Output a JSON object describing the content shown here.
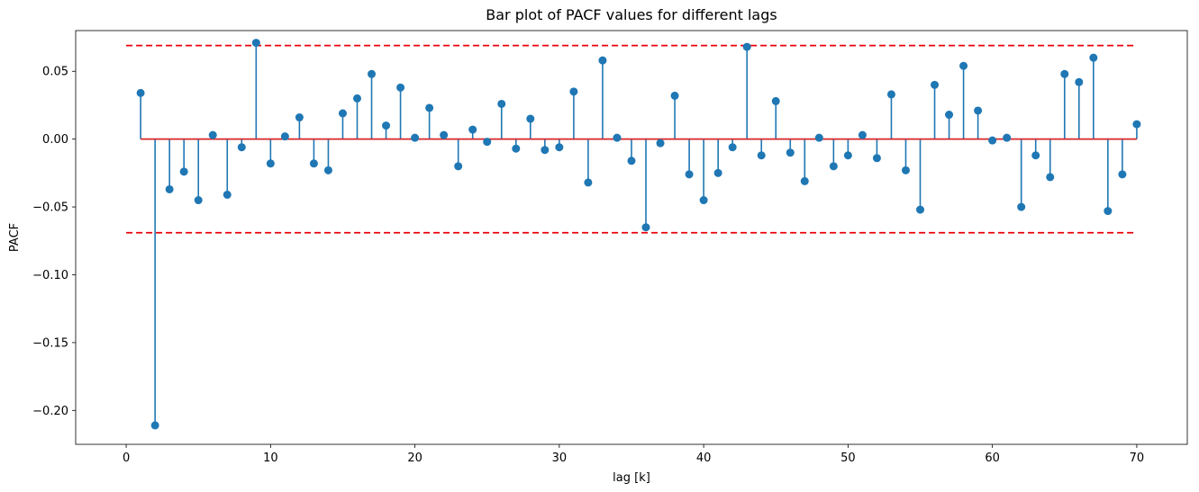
{
  "chart_data": {
    "type": "stem",
    "title": "Bar plot of PACF values for different lags",
    "xlabel": "lag [k]",
    "ylabel": "PACF",
    "xlim": [
      -3.5,
      73.5
    ],
    "ylim": [
      -0.225,
      0.08
    ],
    "x_ticks": [
      0,
      10,
      20,
      30,
      40,
      50,
      60,
      70
    ],
    "x_tick_labels": [
      "0",
      "10",
      "20",
      "30",
      "40",
      "50",
      "60",
      "70"
    ],
    "y_ticks": [
      0.05,
      0.0,
      -0.05,
      -0.1,
      -0.15,
      -0.2
    ],
    "y_tick_labels": [
      "0.05",
      "0.00",
      "−0.05",
      "−0.10",
      "−0.15",
      "−0.20"
    ],
    "grid": false,
    "series": [
      {
        "x": [
          1,
          2,
          3,
          4,
          5,
          6,
          7,
          8,
          9,
          10,
          11,
          12,
          13,
          14,
          15,
          16,
          17,
          18,
          19,
          20,
          21,
          22,
          23,
          24,
          25,
          26,
          27,
          28,
          29,
          30,
          31,
          32,
          33,
          34,
          35,
          36,
          37,
          38,
          39,
          40,
          41,
          42,
          43,
          44,
          45,
          46,
          47,
          48,
          49,
          50,
          51,
          52,
          53,
          54,
          55,
          56,
          57,
          58,
          59,
          60,
          61,
          62,
          63,
          64,
          65,
          66,
          67,
          68,
          69,
          70
        ],
        "values": [
          0.034,
          -0.211,
          -0.037,
          -0.024,
          -0.045,
          0.003,
          -0.041,
          -0.006,
          0.071,
          -0.018,
          0.002,
          0.016,
          -0.018,
          -0.023,
          0.019,
          0.03,
          0.048,
          0.01,
          0.038,
          0.001,
          0.023,
          0.003,
          -0.02,
          0.007,
          -0.002,
          0.026,
          -0.007,
          0.015,
          -0.008,
          -0.006,
          0.035,
          -0.032,
          0.058,
          0.001,
          -0.016,
          -0.065,
          -0.003,
          0.032,
          -0.026,
          -0.045,
          -0.025,
          -0.006,
          0.068,
          -0.012,
          0.028,
          -0.01,
          -0.031,
          0.001,
          -0.02,
          -0.012,
          0.003,
          -0.014,
          0.033,
          -0.023,
          -0.052,
          0.04,
          0.018,
          0.054,
          0.021,
          -0.001,
          0.001,
          -0.05,
          -0.012,
          -0.028,
          0.048,
          0.042,
          0.06,
          -0.053,
          -0.026,
          0.011
        ],
        "color": "#1f77b4"
      }
    ],
    "baseline": {
      "y": 0.0,
      "from_x": 1,
      "to_x": 70,
      "color": "#d62728"
    },
    "confidence_bounds": {
      "upper": 0.069,
      "lower": -0.069,
      "from_x": 0,
      "to_x": 70,
      "color": "#e8000b",
      "style": "dashed"
    }
  }
}
